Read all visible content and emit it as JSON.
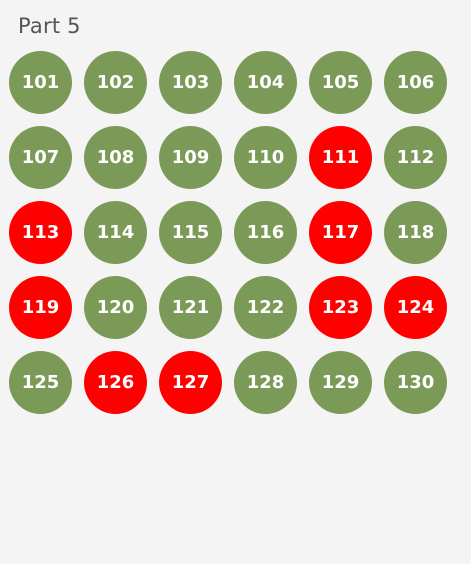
{
  "part_title": "Part 5",
  "colors": {
    "answered": "#7c9a57",
    "flagged": "#ff0000",
    "text": "#ffffff",
    "background": "#f4f4f4"
  },
  "questions": [
    {
      "label": "101",
      "status": "answered"
    },
    {
      "label": "102",
      "status": "answered"
    },
    {
      "label": "103",
      "status": "answered"
    },
    {
      "label": "104",
      "status": "answered"
    },
    {
      "label": "105",
      "status": "answered"
    },
    {
      "label": "106",
      "status": "answered"
    },
    {
      "label": "107",
      "status": "answered"
    },
    {
      "label": "108",
      "status": "answered"
    },
    {
      "label": "109",
      "status": "answered"
    },
    {
      "label": "110",
      "status": "answered"
    },
    {
      "label": "111",
      "status": "flagged"
    },
    {
      "label": "112",
      "status": "answered"
    },
    {
      "label": "113",
      "status": "flagged"
    },
    {
      "label": "114",
      "status": "answered"
    },
    {
      "label": "115",
      "status": "answered"
    },
    {
      "label": "116",
      "status": "answered"
    },
    {
      "label": "117",
      "status": "flagged"
    },
    {
      "label": "118",
      "status": "answered"
    },
    {
      "label": "119",
      "status": "flagged"
    },
    {
      "label": "120",
      "status": "answered"
    },
    {
      "label": "121",
      "status": "answered"
    },
    {
      "label": "122",
      "status": "answered"
    },
    {
      "label": "123",
      "status": "flagged"
    },
    {
      "label": "124",
      "status": "flagged"
    },
    {
      "label": "125",
      "status": "answered"
    },
    {
      "label": "126",
      "status": "flagged"
    },
    {
      "label": "127",
      "status": "flagged"
    },
    {
      "label": "128",
      "status": "answered"
    },
    {
      "label": "129",
      "status": "answered"
    },
    {
      "label": "130",
      "status": "answered"
    }
  ]
}
